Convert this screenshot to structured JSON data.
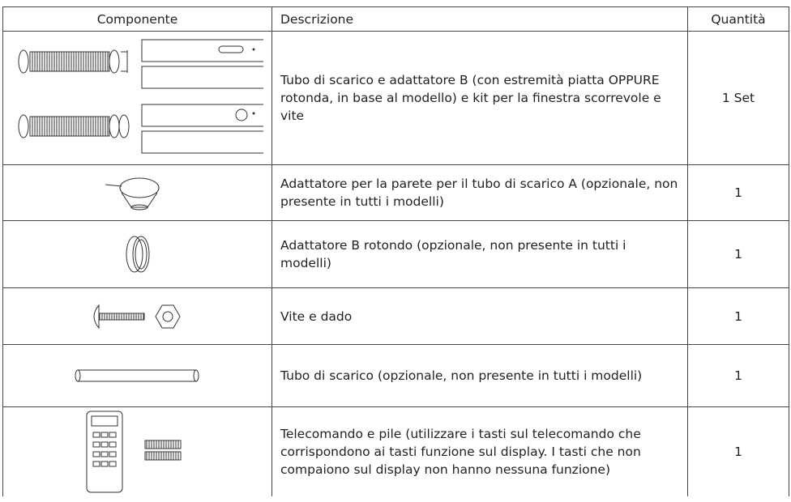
{
  "table": {
    "header": [
      "Componente",
      "Descrizione",
      "Quantità"
    ],
    "rows": [
      {
        "description": "Tubo di scarico e adattatore B (con estremità piatta OPPURE rotonda, in base al modello) e kit per la finestra scorrevole e vite",
        "quantity": "1 Set"
      },
      {
        "description": "Adattatore per la parete per il tubo di scarico A (opzionale, non presente in tutti i modelli)",
        "quantity": "1"
      },
      {
        "description": "Adattatore B rotondo (opzionale, non presente in tutti i modelli)",
        "quantity": "1"
      },
      {
        "description": "Vite e dado",
        "quantity": "1"
      },
      {
        "description": "Tubo di scarico (opzionale, non presente in tutti i modelli)",
        "quantity": "1"
      },
      {
        "description": "Telecomando e pile (utilizzare i tasti sul telecomando che corrispondono ai tasti funzione sul display. I tasti che non compaiono sul display non hanno nessuna funzione)",
        "quantity": "1"
      }
    ]
  }
}
